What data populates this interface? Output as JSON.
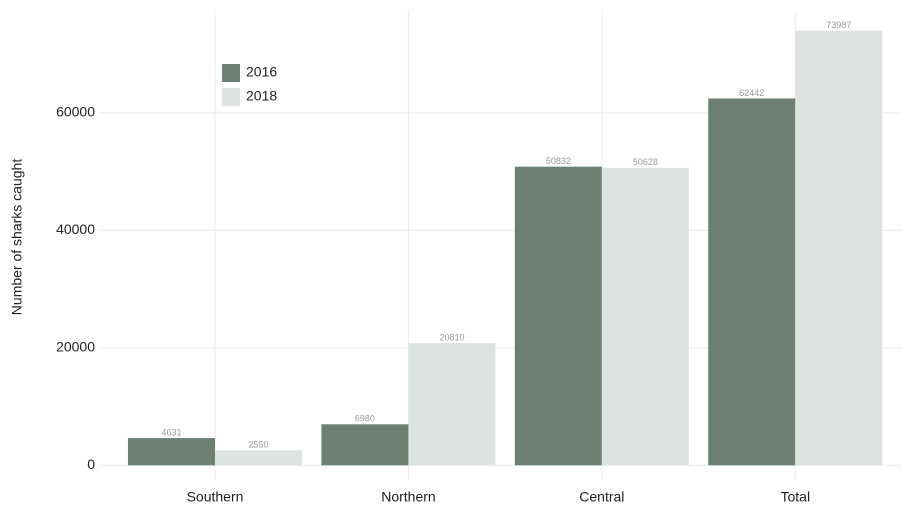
{
  "chart_data": {
    "type": "bar",
    "y_label": "Number of sharks caught",
    "categories": [
      "Southern",
      "Northern",
      "Central",
      "Total"
    ],
    "series": [
      {
        "name": "2016",
        "color": "#6b8072",
        "values": [
          4631,
          6980,
          50832,
          62442
        ]
      },
      {
        "name": "2018",
        "color": "#dde3e0",
        "values": [
          2550,
          20810,
          50628,
          73987
        ]
      }
    ],
    "ylim": [
      -2500,
      77500
    ],
    "yticks": [
      0,
      20000,
      40000,
      60000
    ],
    "grid": true,
    "legend": "top-left"
  }
}
